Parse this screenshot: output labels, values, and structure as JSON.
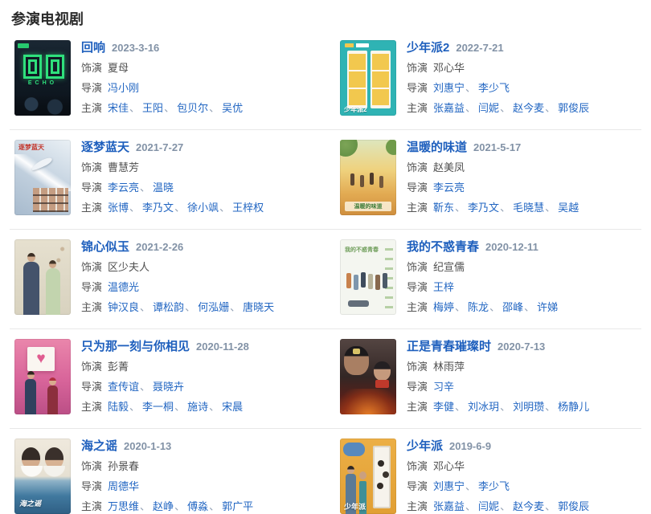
{
  "page": {
    "title": "参演电视剧"
  },
  "labels": {
    "role": "饰演",
    "director": "导演",
    "cast": "主演"
  },
  "colors": {
    "title_link_blue": "#1e5fbd",
    "name_link_blue": "#2266c2",
    "date_gray_blue": "#8292a6",
    "label_gray": "#555555",
    "separator_gray": "#93a1b5",
    "divider_gray": "#e8e8e8",
    "background": "#ffffff",
    "echo_poster_green": "#2fe07c"
  },
  "entries": [
    {
      "title": "回响",
      "date": "2023-3-16",
      "role": "夏母",
      "directors": [
        "冯小刚"
      ],
      "cast": [
        "宋佳",
        "王阳",
        "包贝尔",
        "吴优"
      ],
      "poster_alt": "dark poster with neon green nested-square title and ECHO lettering",
      "poster_text": "ECHO"
    },
    {
      "title": "少年派2",
      "date": "2022-7-21",
      "role": "邓心华",
      "directors": [
        "刘惠宁",
        "李少飞"
      ],
      "cast": [
        "张嘉益",
        "闫妮",
        "赵今麦",
        "郭俊辰"
      ],
      "poster_alt": "teal poster with six yellow photo tiles of the cast",
      "poster_text": "少年派2"
    },
    {
      "title": "逐梦蓝天",
      "date": "2021-7-27",
      "role": "曹慧芳",
      "directors": [
        "李云亮",
        "温晓"
      ],
      "cast": [
        "张博",
        "李乃文",
        "徐小飒",
        "王梓权"
      ],
      "poster_alt": "sky poster with fighter jet contrail and grid of cast faces",
      "poster_text": "逐梦蓝天"
    },
    {
      "title": "温暖的味道",
      "date": "2021-5-17",
      "role": "赵美凤",
      "directors": [
        "李云亮"
      ],
      "cast": [
        "靳东",
        "李乃文",
        "毛晓慧",
        "吴越"
      ],
      "poster_alt": "warm golden harvest poster with villagers walking",
      "poster_text": "温暖的味道"
    },
    {
      "title": "锦心似玉",
      "date": "2021-2-26",
      "role": "区少夫人",
      "directors": [
        "温德光"
      ],
      "cast": [
        "钟汉良",
        "谭松韵",
        "何泓姗",
        "唐晓天"
      ],
      "poster_alt": "pale beige costume-drama poster with couple in traditional dress",
      "poster_text": ""
    },
    {
      "title": "我的不惑青春",
      "date": "2020-12-11",
      "role": "纪宣儒",
      "directors": [
        "王梓"
      ],
      "cast": [
        "梅婷",
        "陈龙",
        "邵峰",
        "许娣"
      ],
      "poster_alt": "light green-white poster with group of people",
      "poster_text": "我的不惑青春"
    },
    {
      "title": "只为那一刻与你相见",
      "date": "2020-11-28",
      "role": "彭菁",
      "directors": [
        "查传谊",
        "聂晓卉"
      ],
      "cast": [
        "陆毅",
        "李一桐",
        "施诗",
        "宋晨"
      ],
      "poster_alt": "pink wall poster with heart clock frame and couple",
      "poster_text": ""
    },
    {
      "title": "正是青春璀璨时",
      "date": "2020-7-13",
      "role": "林雨萍",
      "directors": [
        "习辛"
      ],
      "cast": [
        "李健",
        "刘冰玥",
        "刘明瓒",
        "杨静儿"
      ],
      "poster_alt": "dark fiery poster with helmeted miner and girl in red scarf",
      "poster_text": ""
    },
    {
      "title": "海之谣",
      "date": "2020-1-13",
      "role": "孙景春",
      "directors": [
        "周德华"
      ],
      "cast": [
        "万思维",
        "赵峥",
        "傅淼",
        "郭广平"
      ],
      "poster_alt": "seaside poster with two girls back to back above blue water",
      "poster_text": "海之谣"
    },
    {
      "title": "少年派",
      "date": "2019-6-9",
      "role": "邓心华",
      "directors": [
        "刘惠宁",
        "李少飞"
      ],
      "cast": [
        "张嘉益",
        "闫妮",
        "赵今麦",
        "郭俊辰"
      ],
      "poster_alt": "yellow poster with family beside white door and thought bubble",
      "poster_text": "少年派"
    }
  ]
}
